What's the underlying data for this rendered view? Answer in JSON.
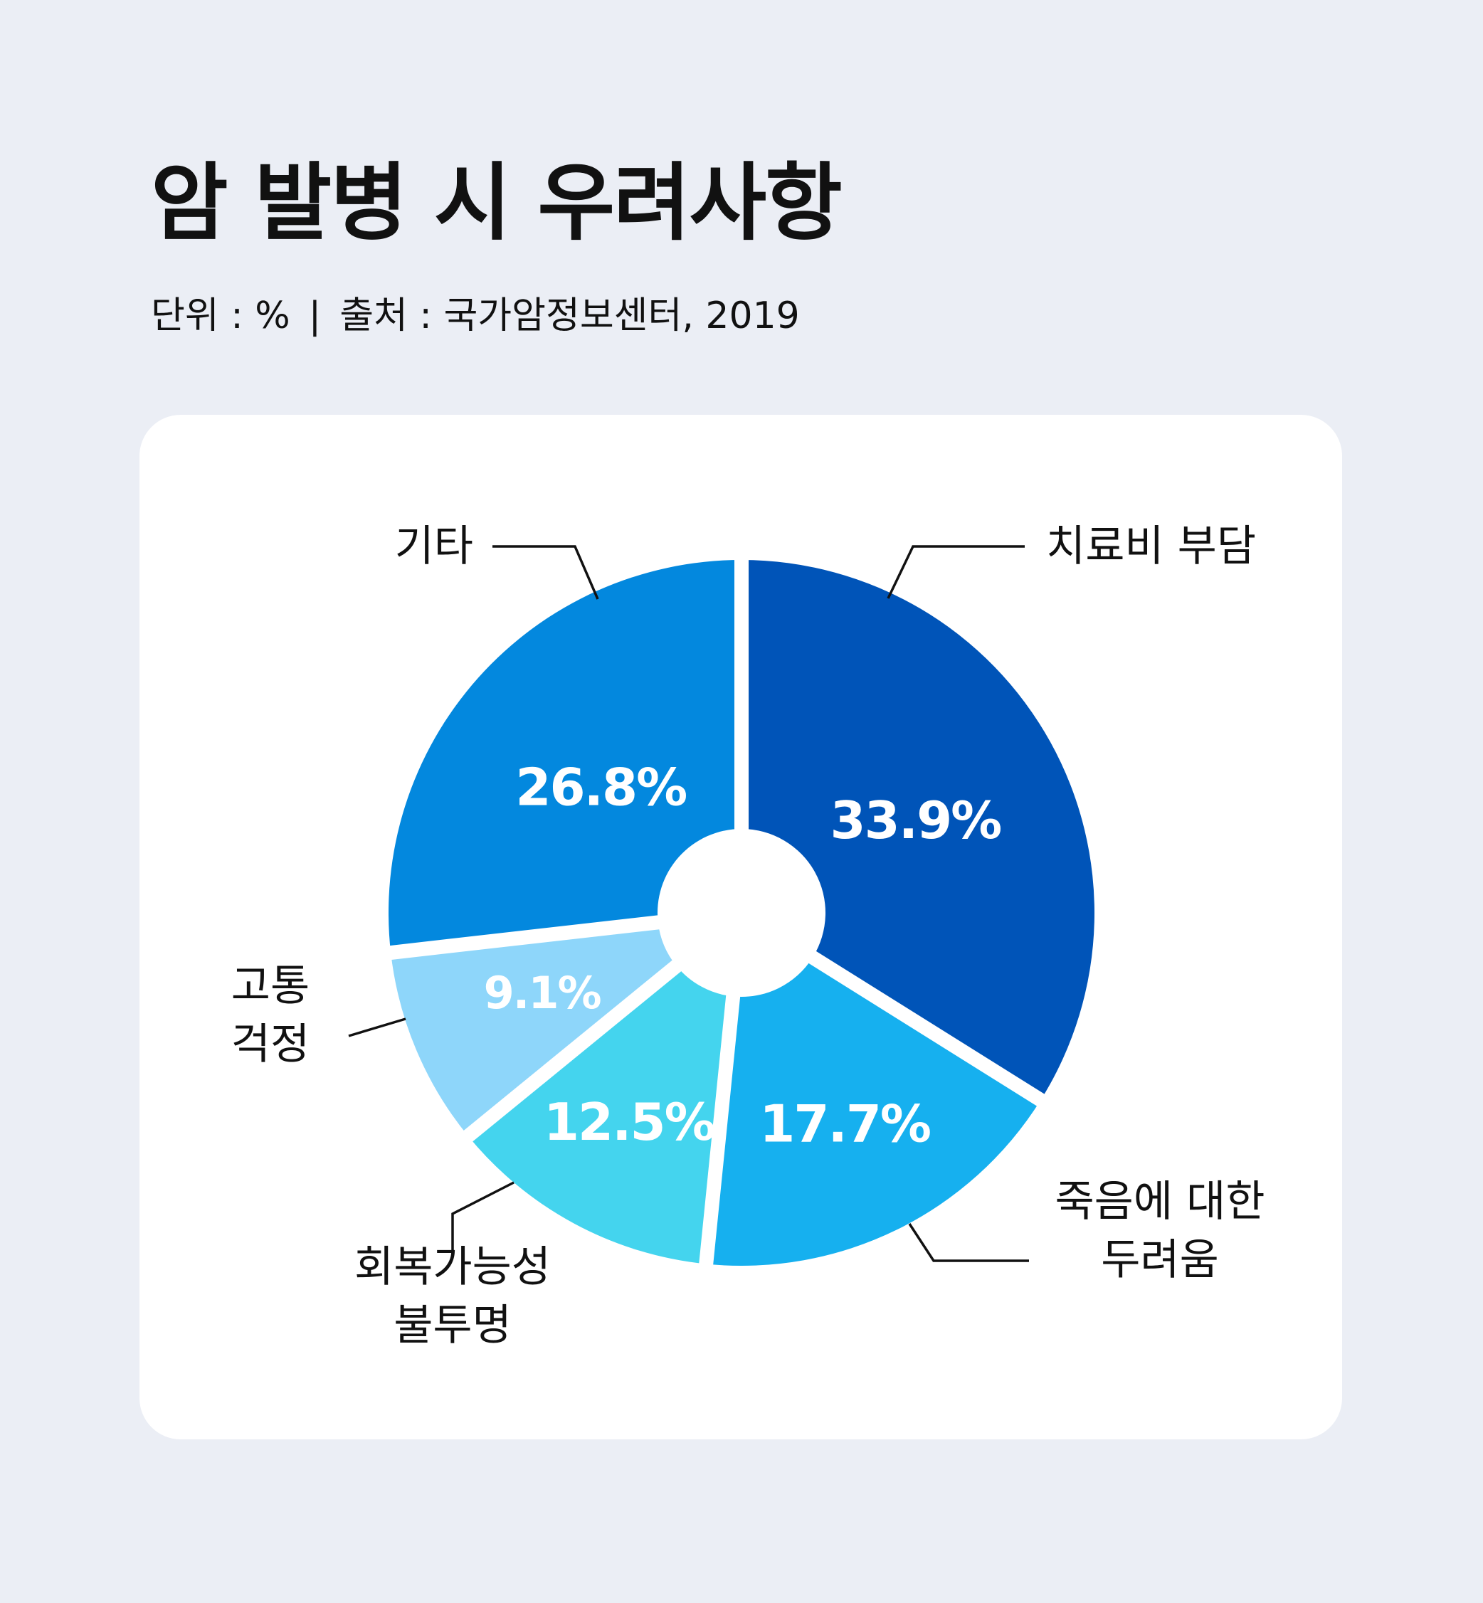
{
  "title": "암 발병 시 우려사항",
  "subtitle": {
    "unit": "단위 : %",
    "separator": "|",
    "source": "출처 : 국가암정보센터, 2019"
  },
  "chart_data": {
    "type": "pie",
    "title": "암 발병 시 우려사항",
    "unit": "%",
    "categories": [
      "치료비 부담",
      "죽음에 대한 두려움",
      "회복가능성 불투명",
      "고통 걱정",
      "기타"
    ],
    "values": [
      33.9,
      17.7,
      12.5,
      9.1,
      26.8
    ],
    "value_labels": [
      "33.9%",
      "17.7%",
      "12.5%",
      "9.1%",
      "26.8%"
    ],
    "category_label_lines": [
      [
        "치료비 부담"
      ],
      [
        "죽음에 대한",
        "두려움"
      ],
      [
        "회복가능성",
        "불투명"
      ],
      [
        "고통",
        "걱정"
      ],
      [
        "기타"
      ]
    ],
    "colors": [
      "#0054B8",
      "#16B0EF",
      "#44D4EE",
      "#8ED6FA",
      "#0388DE"
    ],
    "legend": "none"
  }
}
